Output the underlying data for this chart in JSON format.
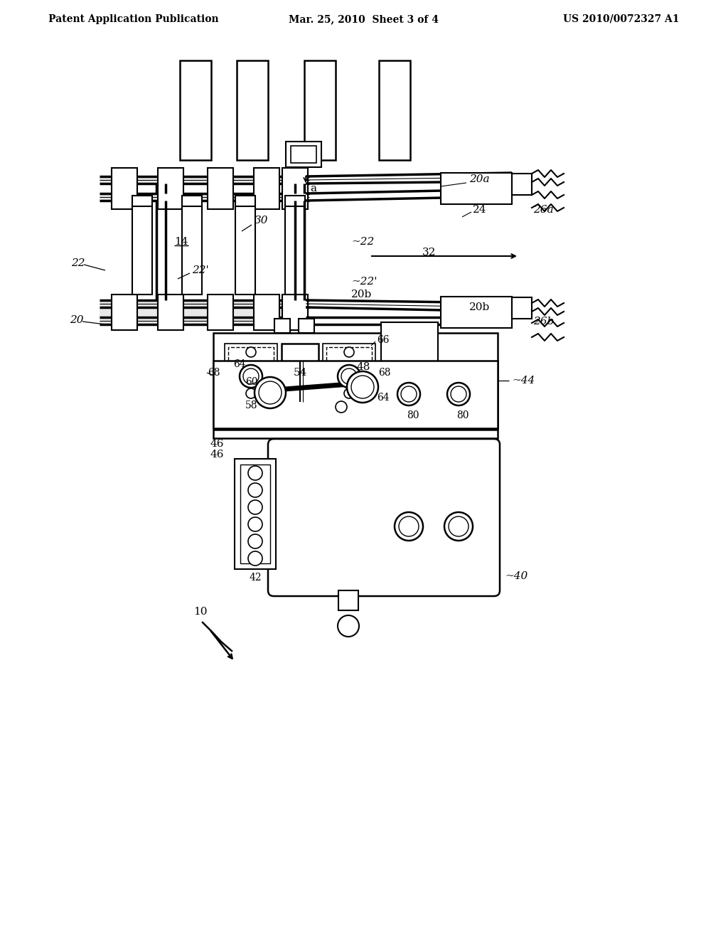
{
  "bg_color": "#ffffff",
  "header_left": "Patent Application Publication",
  "header_mid": "Mar. 25, 2010  Sheet 3 of 4",
  "header_right": "US 2010/0072327 A1",
  "lw_thin": 1.0,
  "lw_med": 1.5,
  "lw_thick": 2.2,
  "lw_rail": 3.0
}
